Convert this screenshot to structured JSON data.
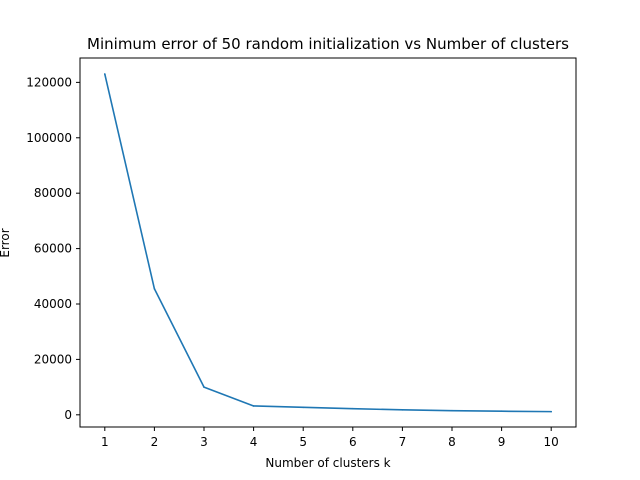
{
  "chart_data": {
    "type": "line",
    "title": "Minimum error of 50 random initialization vs Number of clusters",
    "xlabel": "Number of clusters k",
    "ylabel": "Error",
    "x": [
      1,
      2,
      3,
      4,
      5,
      6,
      7,
      8,
      9,
      10
    ],
    "series": [
      {
        "values": [
          123000,
          45500,
          10000,
          3200,
          2700,
          2200,
          1800,
          1500,
          1300,
          1150
        ],
        "color": "#1f77b4"
      }
    ],
    "xlim": [
      0.5,
      10.5
    ],
    "ylim": [
      -4400,
      128800
    ],
    "xticks": [
      1,
      2,
      3,
      4,
      5,
      6,
      7,
      8,
      9,
      10
    ],
    "yticks": [
      0,
      20000,
      40000,
      60000,
      80000,
      100000,
      120000
    ],
    "grid": false,
    "legend": "none"
  }
}
